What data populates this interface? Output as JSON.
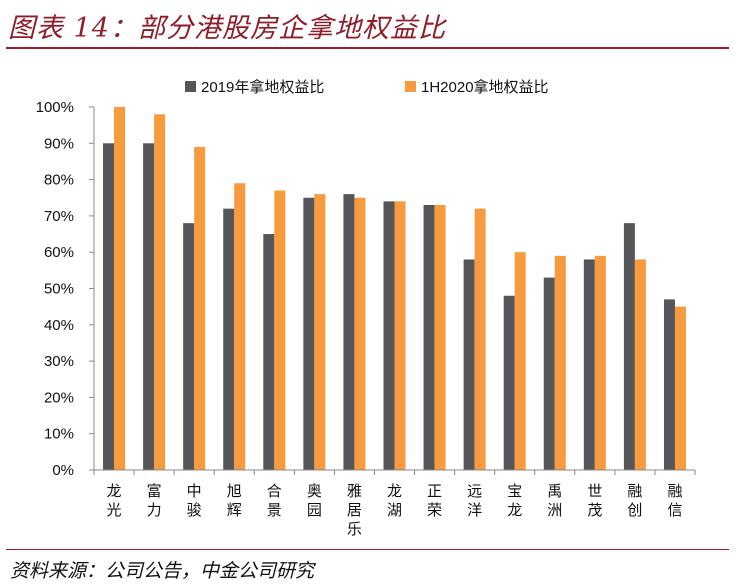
{
  "title": "图表 14：部分港股房企拿地权益比",
  "source": "资料来源：公司公告，中金公司研究",
  "colors": {
    "series1": "#54565a",
    "series2": "#f89a3e",
    "axis": "#888888",
    "accent": "#9b1b2b"
  },
  "chart_data": {
    "type": "bar",
    "categories": [
      "龙光",
      "富力",
      "中骏",
      "旭辉",
      "合景",
      "奥园",
      "雅居乐",
      "龙湖",
      "正荣",
      "远洋",
      "宝龙",
      "禹洲",
      "世茂",
      "融创",
      "融信"
    ],
    "series": [
      {
        "name": "2019年拿地权益比",
        "values": [
          90,
          90,
          68,
          72,
          65,
          75,
          76,
          74,
          73,
          58,
          48,
          53,
          58,
          68,
          47
        ]
      },
      {
        "name": "1H2020拿地权益比",
        "values": [
          100,
          98,
          89,
          79,
          77,
          76,
          75,
          74,
          73,
          72,
          60,
          59,
          59,
          58,
          45
        ]
      }
    ],
    "ylim": [
      0,
      100
    ],
    "yticks": [
      "0%",
      "10%",
      "20%",
      "30%",
      "40%",
      "50%",
      "60%",
      "70%",
      "80%",
      "90%",
      "100%"
    ],
    "legend_position": "top",
    "grid": false
  }
}
